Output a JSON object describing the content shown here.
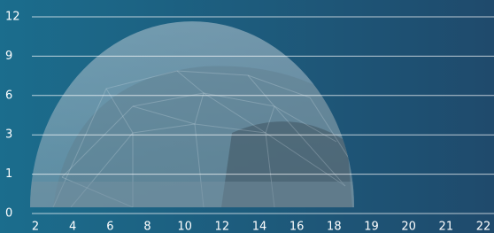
{
  "y_axis": {
    "ticks": [
      12,
      9,
      6,
      3,
      1,
      0
    ]
  },
  "x_axis": {
    "ticks": [
      2,
      4,
      6,
      8,
      10,
      12,
      14,
      16,
      18,
      19,
      20,
      21,
      22
    ]
  }
}
